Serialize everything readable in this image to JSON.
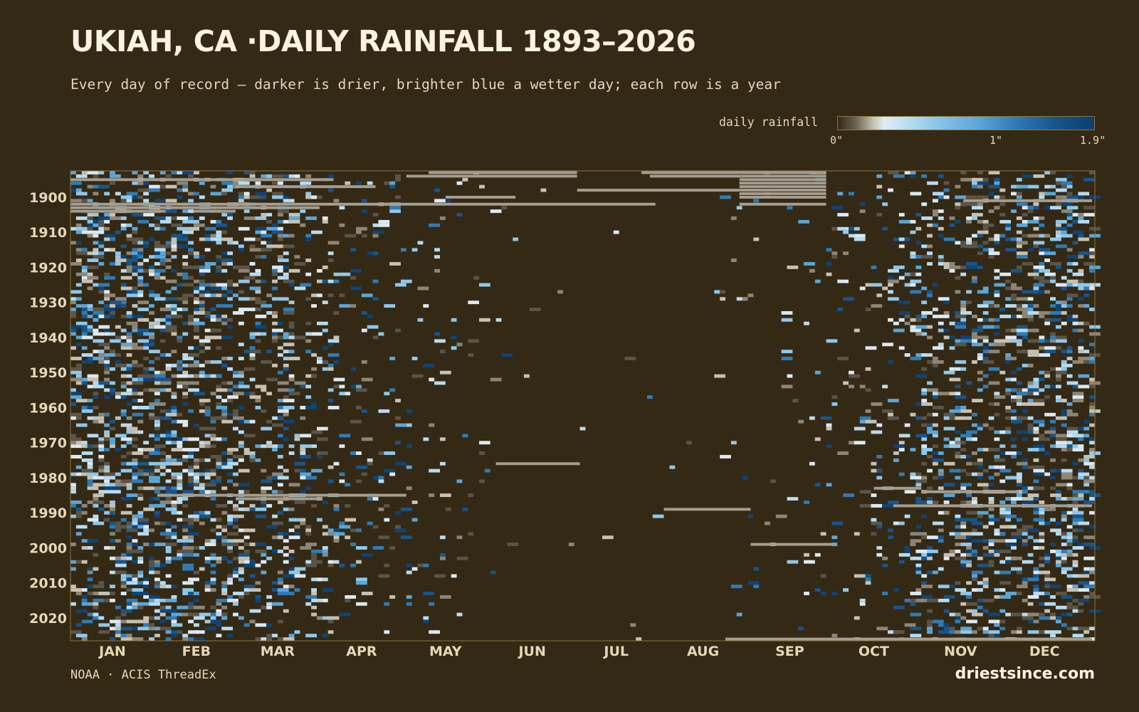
{
  "header": {
    "title": "UKIAH, CA ·DAILY RAINFALL 1893–2026",
    "subtitle": "Every day of record — darker is drier, brighter blue a wetter day; each row is a year"
  },
  "legend": {
    "label": "daily rainfall",
    "ticks": [
      {
        "label": "0\"",
        "value": 0
      },
      {
        "label": "1\"",
        "value": 1
      },
      {
        "label": "1.9\"",
        "value": 1.9
      }
    ]
  },
  "footer": {
    "source": "NOAA · ACIS ThreadEx",
    "brand": "driestsince.com"
  },
  "colors": {
    "background": "#342915",
    "border": "#8c7540",
    "missing": "#a59d8f",
    "wet_low": "#cfe6f4",
    "wet_high": "#0c3e70"
  },
  "chart_data": {
    "type": "heatmap",
    "title": "UKIAH, CA ·DAILY RAINFALL 1893–2026",
    "x_axis": {
      "unit": "day of year",
      "range": [
        1,
        366
      ],
      "ticks": [
        {
          "label": "JAN",
          "day": 16
        },
        {
          "label": "FEB",
          "day": 46
        },
        {
          "label": "MAR",
          "day": 75
        },
        {
          "label": "APR",
          "day": 105
        },
        {
          "label": "MAY",
          "day": 135
        },
        {
          "label": "JUN",
          "day": 166
        },
        {
          "label": "JUL",
          "day": 196
        },
        {
          "label": "AUG",
          "day": 227
        },
        {
          "label": "SEP",
          "day": 258
        },
        {
          "label": "OCT",
          "day": 288
        },
        {
          "label": "NOV",
          "day": 319
        },
        {
          "label": "DEC",
          "day": 349
        }
      ]
    },
    "y_axis": {
      "unit": "year",
      "range": [
        1893,
        2026
      ],
      "ticks": [
        1900,
        1910,
        1920,
        1930,
        1940,
        1950,
        1960,
        1970,
        1980,
        1990,
        2000,
        2010,
        2020
      ]
    },
    "color_scale": {
      "min": 0,
      "max": 1.9,
      "unit": "in"
    },
    "missing_segments": [
      {
        "year": 1893,
        "start_day": 129,
        "end_day": 182
      },
      {
        "year": 1893,
        "start_day": 205,
        "end_day": 240
      },
      {
        "year": 1893,
        "start_day": 240,
        "end_day": 271
      },
      {
        "year": 1894,
        "start_day": 121,
        "end_day": 182
      },
      {
        "year": 1894,
        "start_day": 208,
        "end_day": 240
      },
      {
        "year": 1894,
        "start_day": 240,
        "end_day": 271
      },
      {
        "year": 1895,
        "start_day": 1,
        "end_day": 95
      },
      {
        "year": 1895,
        "start_day": 240,
        "end_day": 271
      },
      {
        "year": 1896,
        "start_day": 240,
        "end_day": 271
      },
      {
        "year": 1897,
        "start_day": 60,
        "end_day": 110
      },
      {
        "year": 1897,
        "start_day": 240,
        "end_day": 271
      },
      {
        "year": 1898,
        "start_day": 182,
        "end_day": 240
      },
      {
        "year": 1898,
        "start_day": 240,
        "end_day": 271
      },
      {
        "year": 1899,
        "start_day": 240,
        "end_day": 271
      },
      {
        "year": 1900,
        "start_day": 135,
        "end_day": 160
      },
      {
        "year": 1900,
        "start_day": 240,
        "end_day": 271
      },
      {
        "year": 1901,
        "start_day": 320,
        "end_day": 366
      },
      {
        "year": 1902,
        "start_day": 1,
        "end_day": 210
      },
      {
        "year": 1902,
        "start_day": 240,
        "end_day": 271
      },
      {
        "year": 1903,
        "start_day": 1,
        "end_day": 90
      },
      {
        "year": 1904,
        "start_day": 1,
        "end_day": 35
      },
      {
        "year": 1904,
        "start_day": 45,
        "end_day": 60
      },
      {
        "year": 1976,
        "start_day": 153,
        "end_day": 183
      },
      {
        "year": 1985,
        "start_day": 32,
        "end_day": 121
      },
      {
        "year": 1986,
        "start_day": 60,
        "end_day": 91
      },
      {
        "year": 1983,
        "start_day": 288,
        "end_day": 305
      },
      {
        "year": 1984,
        "start_day": 305,
        "end_day": 340
      },
      {
        "year": 1988,
        "start_day": 295,
        "end_day": 366
      },
      {
        "year": 1989,
        "start_day": 213,
        "end_day": 244
      },
      {
        "year": 1999,
        "start_day": 244,
        "end_day": 274
      },
      {
        "year": 2026,
        "start_day": 235,
        "end_day": 366
      }
    ]
  }
}
